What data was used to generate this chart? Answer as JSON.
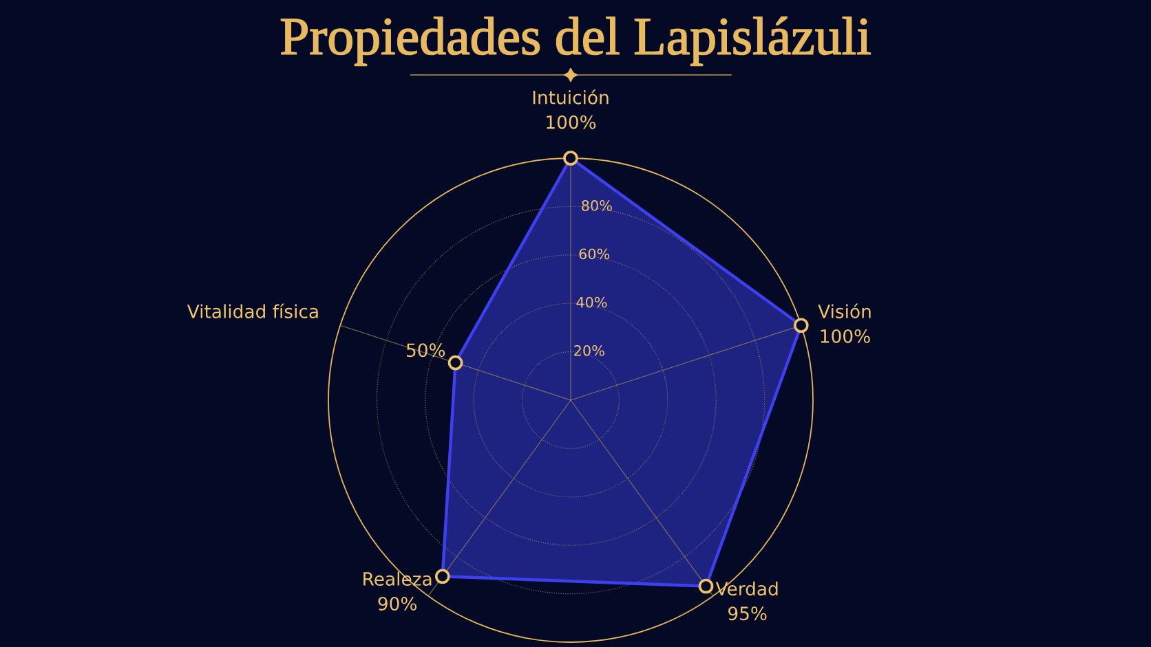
{
  "chart_data": {
    "type": "radar",
    "title": "Propiedades del Lapislázuli",
    "categories": [
      "Intuición",
      "Visión",
      "Verdad",
      "Realeza",
      "Vitalidad física"
    ],
    "series": [
      {
        "color": "#3d40f0",
        "values": [
          100,
          100,
          95,
          90,
          50
        ],
        "value_labels": [
          "100%",
          "100%",
          "95%",
          "90%",
          "50%"
        ]
      }
    ],
    "ylim": [
      0,
      100
    ],
    "yticks": [
      {
        "value": 20,
        "label": "20%"
      },
      {
        "value": 40,
        "label": "40%"
      },
      {
        "value": 60,
        "label": "60%"
      },
      {
        "value": 80,
        "label": "80%"
      }
    ],
    "grid": true,
    "marker": "circle",
    "line_style": "solid"
  }
}
